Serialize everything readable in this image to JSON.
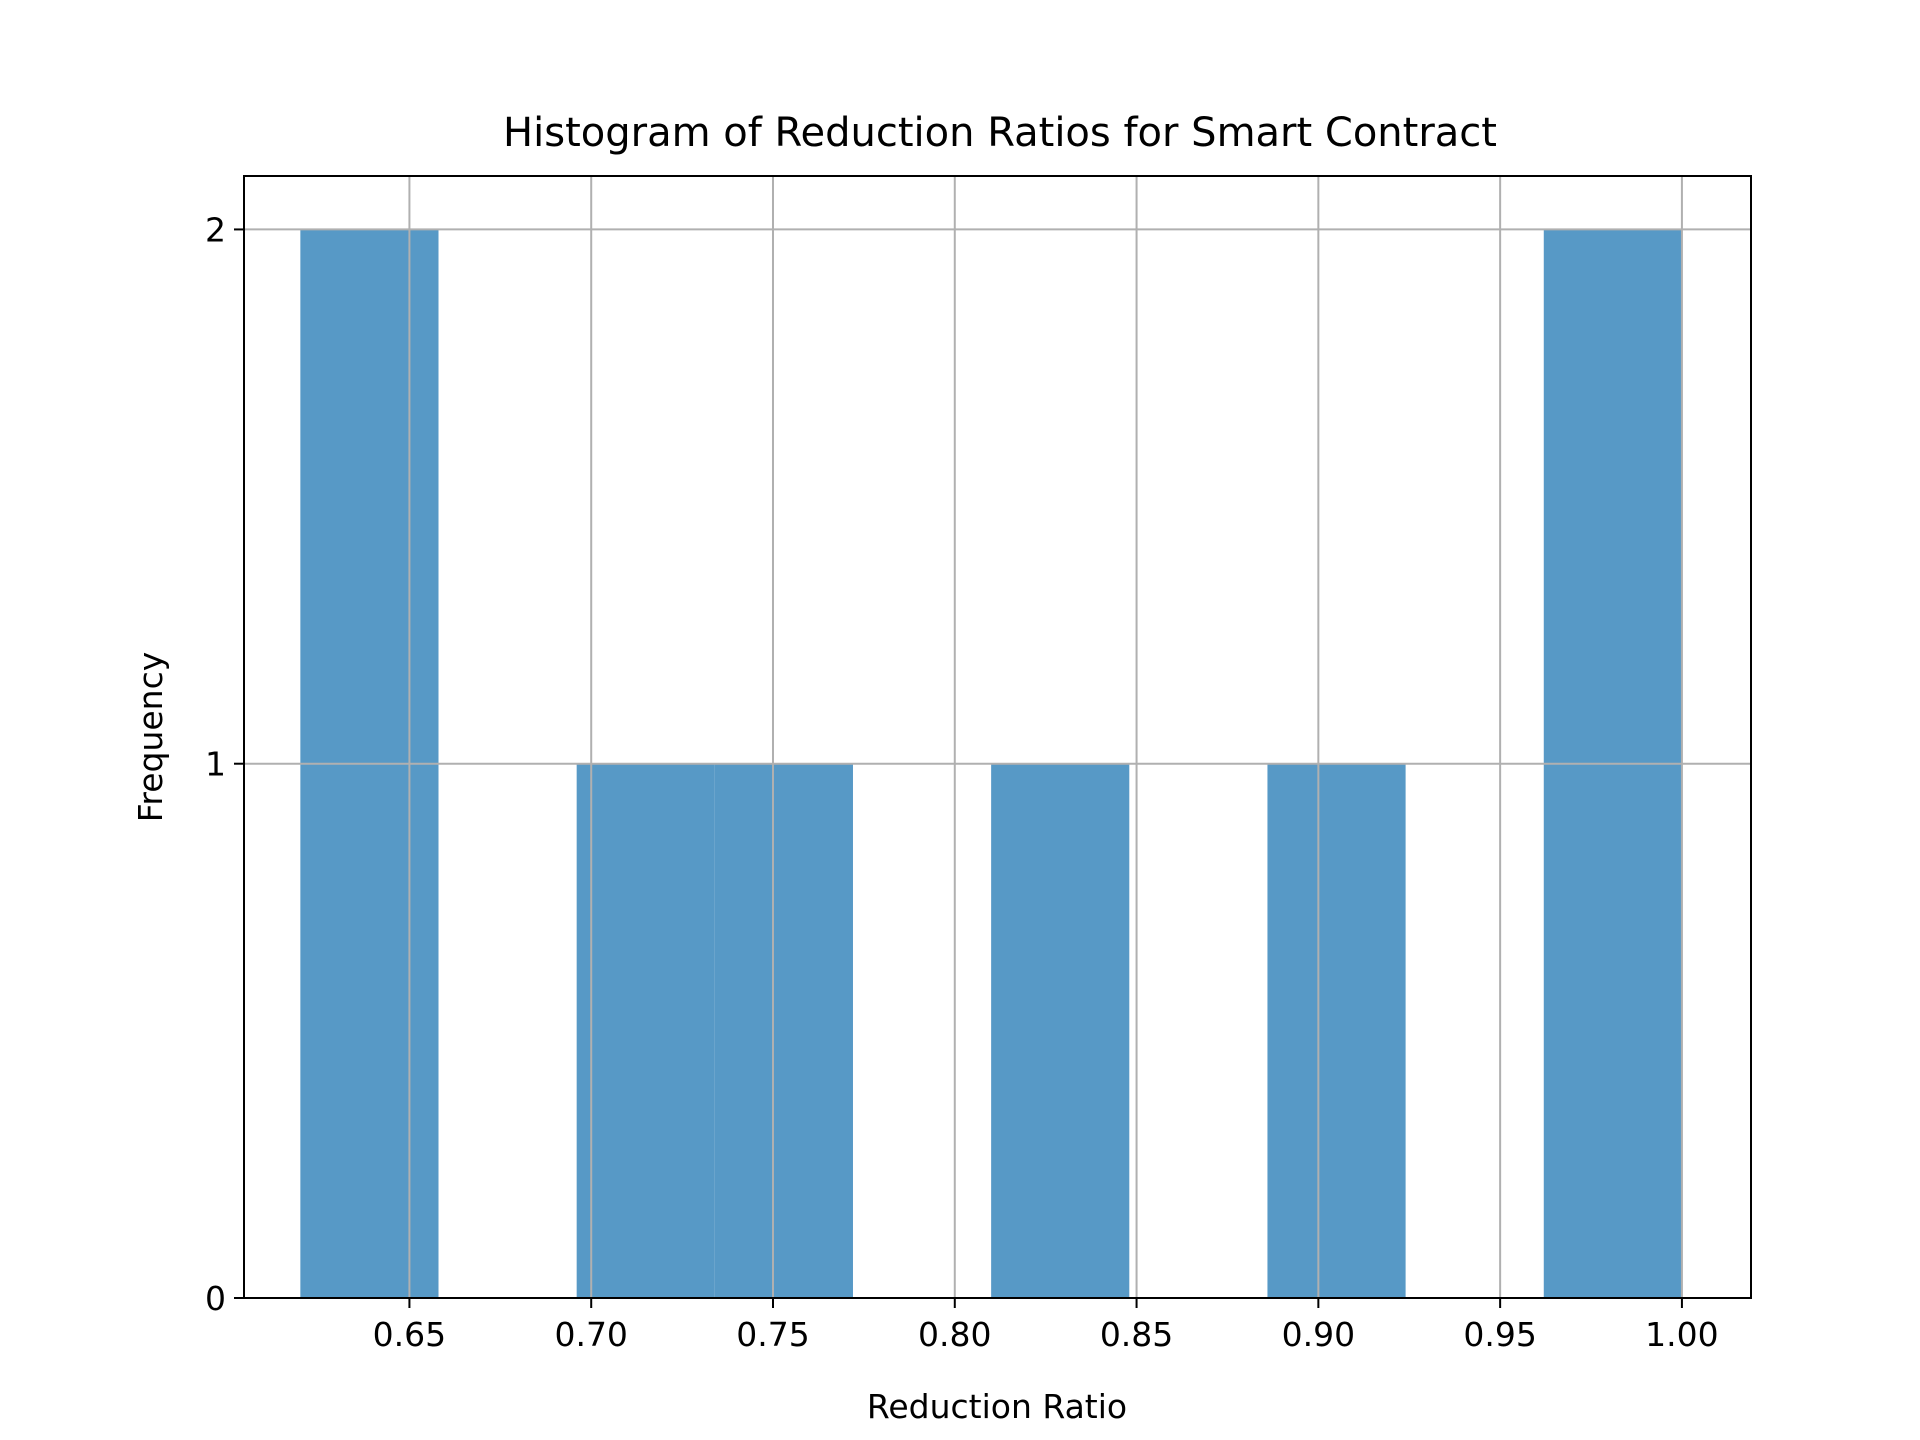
{
  "chart_data": {
    "type": "bar",
    "subtype": "histogram",
    "title": "Histogram of Reduction Ratios for Smart Contract",
    "xlabel": "Reduction Ratio",
    "ylabel": "Frequency",
    "xlim": [
      0.6045,
      1.019
    ],
    "ylim": [
      0,
      2.1
    ],
    "grid": true,
    "bar_color": "#5799c6",
    "bins": [
      {
        "x0": 0.62,
        "x1": 0.658,
        "count": 2
      },
      {
        "x0": 0.658,
        "x1": 0.696,
        "count": 0
      },
      {
        "x0": 0.696,
        "x1": 0.734,
        "count": 1
      },
      {
        "x0": 0.734,
        "x1": 0.772,
        "count": 1
      },
      {
        "x0": 0.772,
        "x1": 0.81,
        "count": 0
      },
      {
        "x0": 0.81,
        "x1": 0.848,
        "count": 1
      },
      {
        "x0": 0.848,
        "x1": 0.886,
        "count": 0
      },
      {
        "x0": 0.886,
        "x1": 0.924,
        "count": 1
      },
      {
        "x0": 0.924,
        "x1": 0.962,
        "count": 0
      },
      {
        "x0": 0.962,
        "x1": 1.0,
        "count": 2
      }
    ],
    "xticks": [
      "0.65",
      "0.70",
      "0.75",
      "0.80",
      "0.85",
      "0.90",
      "0.95",
      "1.00"
    ],
    "yticks": [
      "0",
      "1",
      "2"
    ]
  }
}
